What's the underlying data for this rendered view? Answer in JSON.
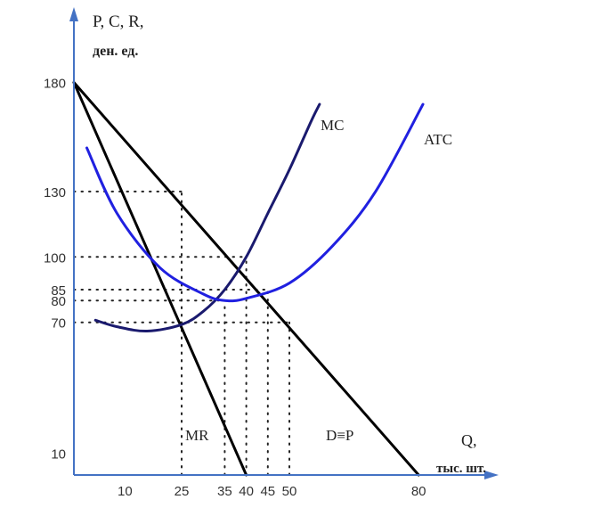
{
  "chart_data": {
    "type": "line",
    "ylabel_line1": "P, C, R,",
    "ylabel_line2": "ден. ед.",
    "xlabel_line1": "Q,",
    "xlabel_line2": "тыс. шт.",
    "xlim": [
      0,
      95
    ],
    "ylim": [
      0,
      200
    ],
    "grid": false,
    "x_ticks": [
      10,
      25,
      35,
      40,
      45,
      50,
      80
    ],
    "x_tick_labels": [
      "10",
      "25",
      "35",
      "40",
      "45",
      "50",
      "80"
    ],
    "y_ticks": [
      10,
      70,
      80,
      85,
      100,
      130,
      180
    ],
    "y_tick_labels": [
      "10",
      "70",
      "80",
      "85",
      "100",
      "130",
      "180"
    ],
    "colors": {
      "axes": "#4472c4",
      "mc": "#1a1a6e",
      "atc": "#2020e0",
      "demand": "#000000",
      "mr": "#000000"
    },
    "series": [
      {
        "name": "D≡P",
        "x": [
          0,
          80
        ],
        "y": [
          180,
          0
        ]
      },
      {
        "name": "MR",
        "x": [
          0,
          40
        ],
        "y": [
          180,
          0
        ]
      },
      {
        "name": "MC",
        "x": [
          5,
          10,
          17,
          25,
          30,
          35,
          40,
          45,
          50,
          55,
          57
        ],
        "y": [
          71,
          68,
          66,
          69,
          75,
          85,
          100,
          120,
          140,
          162,
          170
        ]
      },
      {
        "name": "ATC",
        "x": [
          3,
          10,
          20,
          30,
          35,
          40,
          50,
          60,
          70,
          81
        ],
        "y": [
          150,
          120,
          95,
          83,
          80,
          81,
          88,
          105,
          130,
          170
        ]
      }
    ],
    "guide_lines": [
      {
        "x": 25,
        "y": 130
      },
      {
        "x": 35,
        "y": 80
      },
      {
        "x": 40,
        "y": 100
      },
      {
        "x": 45,
        "y": 85
      },
      {
        "x": 50,
        "y": 70
      }
    ]
  }
}
